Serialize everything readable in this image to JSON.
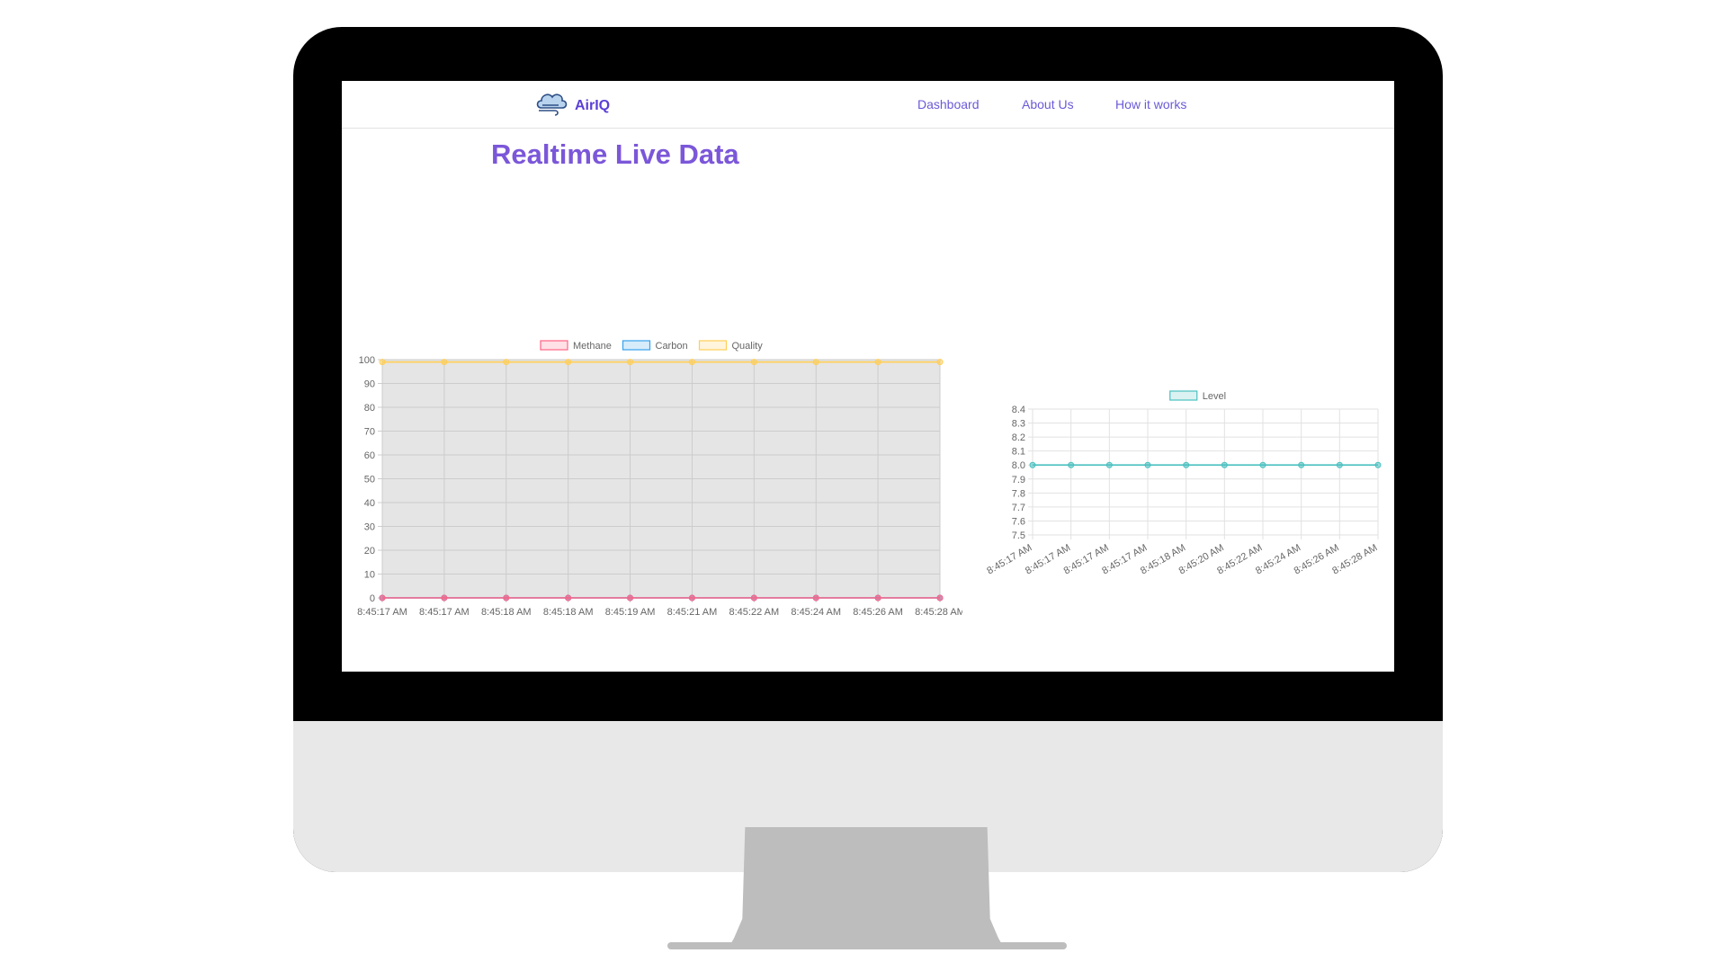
{
  "nav": {
    "brand": "AirIQ",
    "links": [
      "Dashboard",
      "About Us",
      "How it works"
    ]
  },
  "page_title": "Realtime Live Data",
  "colors": {
    "accent": "#7b57d9",
    "methane": "#ff6384",
    "carbon": "#36a2eb",
    "quality": "#ffce56",
    "level": "#4bc0c0"
  },
  "chart_data": [
    {
      "type": "line",
      "categories": [
        "8:45:17 AM",
        "8:45:17 AM",
        "8:45:18 AM",
        "8:45:18 AM",
        "8:45:19 AM",
        "8:45:21 AM",
        "8:45:22 AM",
        "8:45:24 AM",
        "8:45:26 AM",
        "8:45:28 AM"
      ],
      "series": [
        {
          "name": "Methane",
          "values": [
            0,
            0,
            0,
            0,
            0,
            0,
            0,
            0,
            0,
            0
          ],
          "color": "#ff6384"
        },
        {
          "name": "Carbon",
          "values": [
            0,
            0,
            0,
            0,
            0,
            0,
            0,
            0,
            0,
            0
          ],
          "color": "#36a2eb"
        },
        {
          "name": "Quality",
          "values": [
            99,
            99,
            99,
            99,
            99,
            99,
            99,
            99,
            99,
            99
          ],
          "color": "#ffce56"
        }
      ],
      "ylim": [
        0,
        100
      ],
      "yticks": [
        "100",
        "90",
        "80",
        "70",
        "60",
        "50",
        "40",
        "30",
        "20",
        "10",
        "0"
      ],
      "grid": true,
      "legend": "top"
    },
    {
      "type": "line",
      "categories": [
        "8:45:17 AM",
        "8:45:17 AM",
        "8:45:17 AM",
        "8:45:17 AM",
        "8:45:18 AM",
        "8:45:20 AM",
        "8:45:22 AM",
        "8:45:24 AM",
        "8:45:26 AM",
        "8:45:28 AM"
      ],
      "series": [
        {
          "name": "Level",
          "values": [
            8,
            8,
            8,
            8,
            8,
            8,
            8,
            8,
            8,
            8
          ],
          "color": "#4bc0c0"
        }
      ],
      "ylim": [
        7.5,
        8.4
      ],
      "yticks": [
        "8.4",
        "8.3",
        "8.2",
        "8.1",
        "8.0",
        "7.9",
        "7.8",
        "7.7",
        "7.6",
        "7.5"
      ],
      "grid": true,
      "legend": "top"
    }
  ]
}
